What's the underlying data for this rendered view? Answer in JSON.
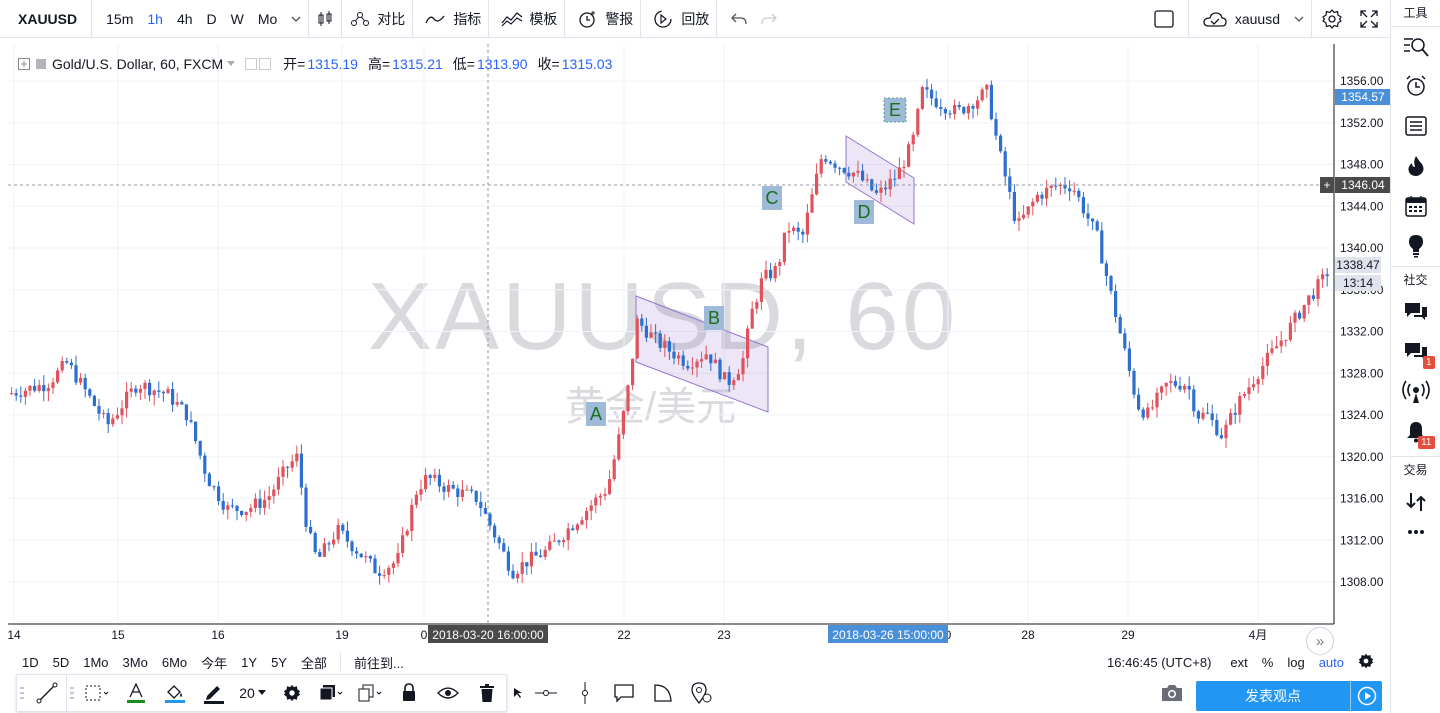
{
  "topbar": {
    "symbol": "XAUUSD",
    "intervals": [
      "15m",
      "1h",
      "4h",
      "D",
      "W",
      "Mo"
    ],
    "active_interval": "1h",
    "compare_label": "对比",
    "indicators_label": "指标",
    "templates_label": "模板",
    "alerts_label": "警报",
    "replay_label": "回放",
    "user": "xauusd"
  },
  "legend": {
    "title": "Gold/U.S. Dollar, 60, FXCM",
    "open_label": "开=",
    "open": "1315.19",
    "high_label": "高=",
    "high": "1315.21",
    "low_label": "低=",
    "low": "1313.90",
    "close_label": "收=",
    "close": "1315.03"
  },
  "watermark": {
    "main": "XAUUSD, 60",
    "sub": "黄金/美元"
  },
  "price_axis": {
    "ticks": [
      "1356.00",
      "1352.00",
      "1348.00",
      "1344.00",
      "1340.00",
      "1336.00",
      "1332.00",
      "1328.00",
      "1324.00",
      "1320.00",
      "1316.00",
      "1312.00",
      "1308.00"
    ],
    "tick_values": [
      1356,
      1352,
      1348,
      1344,
      1340,
      1336,
      1332,
      1328,
      1324,
      1320,
      1316,
      1312,
      1308
    ],
    "labels": [
      {
        "text": "1354.57",
        "style": "blue"
      },
      {
        "text": "1346.04",
        "style": "dark"
      },
      {
        "text": "1338.47",
        "style": "light"
      },
      {
        "text": "13:14",
        "style": "light"
      }
    ]
  },
  "time_axis": {
    "ticks": [
      "14",
      "15",
      "16",
      "19",
      "0",
      "22",
      "23",
      "0",
      "28",
      "29",
      "4月"
    ],
    "highlight_left": "2018-03-20 16:00:00",
    "highlight_right": "2018-03-26 15:00:00"
  },
  "annotations": [
    "A",
    "B",
    "C",
    "D",
    "E"
  ],
  "bottombar": {
    "ranges": [
      "1D",
      "5D",
      "1Mo",
      "3Mo",
      "6Mo",
      "今年",
      "1Y",
      "5Y",
      "全部"
    ],
    "goto": "前往到...",
    "clock": "16:46:45 (UTC+8)",
    "ext": "ext",
    "percent": "%",
    "log": "log",
    "auto": "auto"
  },
  "drawbar": {
    "line_width": "20"
  },
  "sidebar": {
    "tools_label": "工具",
    "social_label": "社交",
    "trade_label": "交易",
    "badge_chat": "1",
    "badge_alerts": "11"
  },
  "publish_label": "发表观点",
  "colors": {
    "up": "#e0525c",
    "down": "#2d6fce",
    "accent": "#2962ff",
    "publish": "#2196f3"
  }
}
